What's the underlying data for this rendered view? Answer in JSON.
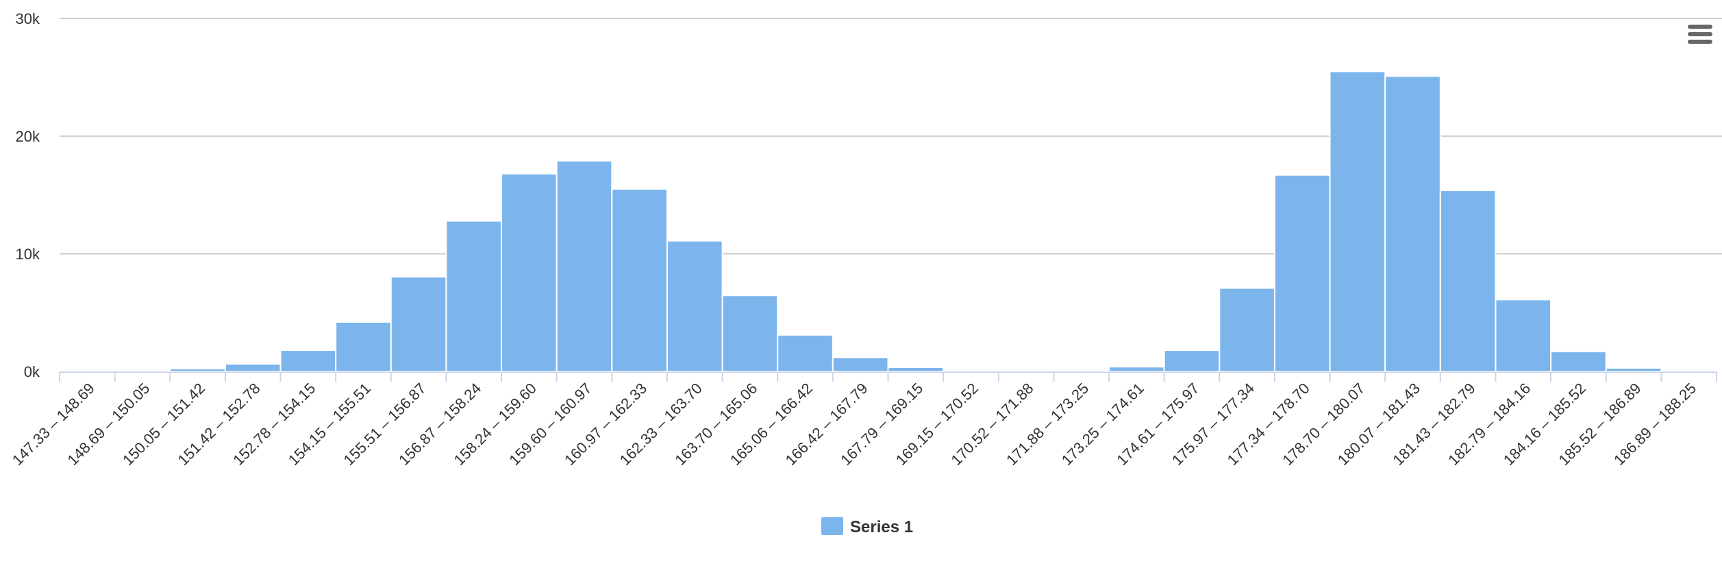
{
  "chart_data": {
    "type": "bar",
    "categories": [
      "147.33 – 148.69",
      "148.69 – 150.05",
      "150.05 – 151.42",
      "151.42 – 152.78",
      "152.78 – 154.15",
      "154.15 – 155.51",
      "155.51 – 156.87",
      "156.87 – 158.24",
      "158.24 – 159.60",
      "159.60 – 160.97",
      "160.97 – 162.33",
      "162.33 – 163.70",
      "163.70 – 165.06",
      "165.06 – 166.42",
      "166.42 – 167.79",
      "167.79 – 169.15",
      "169.15 – 170.52",
      "170.52 – 171.88",
      "171.88 – 173.25",
      "173.25 – 174.61",
      "174.61 – 175.97",
      "175.97 – 177.34",
      "177.34 – 178.70",
      "178.70 – 180.07",
      "180.07 – 181.43",
      "181.43 – 182.79",
      "182.79 – 184.16",
      "184.16 – 185.52",
      "185.52 – 186.89",
      "186.89 – 188.25"
    ],
    "series": [
      {
        "name": "Series 1",
        "color": "#7cb5ec",
        "values": [
          10,
          40,
          250,
          650,
          1800,
          4200,
          8050,
          12800,
          16800,
          17900,
          15500,
          11100,
          6450,
          3100,
          1200,
          350,
          60,
          10,
          50,
          400,
          1800,
          7100,
          16700,
          25500,
          25100,
          15400,
          6100,
          1700,
          300,
          40
        ]
      }
    ],
    "y_ticks": [
      "0k",
      "10k",
      "20k",
      "30k"
    ],
    "ylim": [
      0,
      30000
    ],
    "grid": true,
    "legend_position": "bottom-center",
    "title": "",
    "xlabel": "",
    "ylabel": ""
  },
  "menu_icon": "hamburger-menu-icon"
}
